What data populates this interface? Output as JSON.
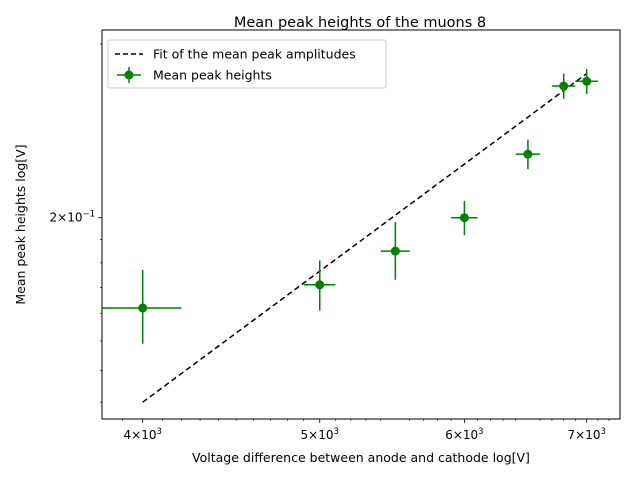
{
  "chart_data": {
    "type": "scatter",
    "title": "Mean peak heights of the muons 8",
    "xlabel": "Voltage difference between anode and cathode log[V]",
    "ylabel": "Mean peak heights log[V]",
    "x_scale": "log",
    "y_scale": "log",
    "xlim": [
      3800,
      7300
    ],
    "ylim": [
      0.125,
      0.31
    ],
    "x_ticks": [
      {
        "value": 4000,
        "base": "4",
        "exp": "3"
      },
      {
        "value": 5000,
        "base": "5",
        "exp": "3"
      },
      {
        "value": 6000,
        "base": "6",
        "exp": "3"
      },
      {
        "value": 7000,
        "base": "7",
        "exp": "3"
      }
    ],
    "y_ticks": [
      {
        "value": 0.2,
        "base": "2",
        "exp": "−1"
      }
    ],
    "legend": {
      "placement": "upper-left",
      "entries": [
        "Fit of the mean peak amplitudes",
        "Mean peak heights"
      ]
    },
    "fit_line": {
      "name": "Fit of the mean peak amplitudes",
      "color": "#000000",
      "style": "dashed",
      "x": [
        4000,
        7000
      ],
      "y": [
        0.13,
        0.28
      ]
    },
    "series": [
      {
        "name": "Mean peak heights",
        "color": "#008000",
        "points": [
          {
            "x": 4000,
            "y": 0.162,
            "xerr": 200,
            "yerr_low": 0.013,
            "yerr_high": 0.015
          },
          {
            "x": 5000,
            "y": 0.171,
            "xerr": 100,
            "yerr_low": 0.01,
            "yerr_high": 0.01
          },
          {
            "x": 5500,
            "y": 0.185,
            "xerr": 100,
            "yerr_low": 0.012,
            "yerr_high": 0.013
          },
          {
            "x": 6000,
            "y": 0.2,
            "xerr": 100,
            "yerr_low": 0.008,
            "yerr_high": 0.008
          },
          {
            "x": 6500,
            "y": 0.232,
            "xerr": 100,
            "yerr_low": 0.008,
            "yerr_high": 0.008
          },
          {
            "x": 6800,
            "y": 0.272,
            "xerr": 100,
            "yerr_low": 0.008,
            "yerr_high": 0.008
          },
          {
            "x": 7000,
            "y": 0.275,
            "xerr": 100,
            "yerr_low": 0.008,
            "yerr_high": 0.008
          }
        ]
      }
    ]
  }
}
